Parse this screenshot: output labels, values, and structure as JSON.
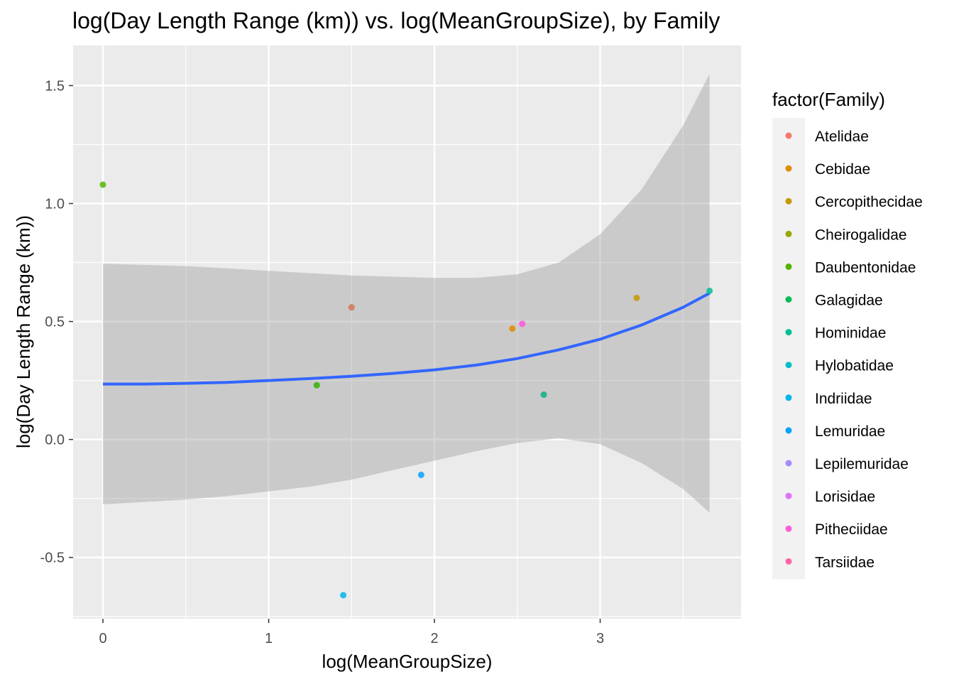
{
  "chart_data": {
    "type": "scatter",
    "title": "log(Day Length Range (km)) vs. log(MeanGroupSize), by Family",
    "xlabel": "log(MeanGroupSize)",
    "ylabel": "log(Day Length Range (km))",
    "xlim": [
      -0.18,
      3.85
    ],
    "ylim": [
      -0.76,
      1.67
    ],
    "x_ticks": [
      0,
      1,
      2,
      3
    ],
    "x_tick_labels": [
      "0",
      "1",
      "2",
      "3"
    ],
    "y_ticks": [
      -0.5,
      0.0,
      0.5,
      1.0,
      1.5
    ],
    "y_tick_labels": [
      "-0.5",
      "0.0",
      "0.5",
      "1.0",
      "1.5"
    ],
    "grid": true,
    "legend_title": "factor(Family)",
    "legend_position": "right",
    "legend": [
      {
        "family": "Atelidae",
        "color": "#F8766D"
      },
      {
        "family": "Cebidae",
        "color": "#E38900"
      },
      {
        "family": "Cercopithecidae",
        "color": "#C49A00"
      },
      {
        "family": "Cheirogalidae",
        "color": "#99A800"
      },
      {
        "family": "Daubentonidae",
        "color": "#53B400"
      },
      {
        "family": "Galagidae",
        "color": "#00BC56"
      },
      {
        "family": "Hominidae",
        "color": "#00C094"
      },
      {
        "family": "Hylobatidae",
        "color": "#00BFC4"
      },
      {
        "family": "Indriidae",
        "color": "#00B6EB"
      },
      {
        "family": "Lemuridae",
        "color": "#06A4FF"
      },
      {
        "family": "Lepilemuridae",
        "color": "#A58AFF"
      },
      {
        "family": "Lorisidae",
        "color": "#DF70F8"
      },
      {
        "family": "Pitheciidae",
        "color": "#FB61D7"
      },
      {
        "family": "Tarsiidae",
        "color": "#FF66A8"
      }
    ],
    "points": [
      {
        "x": 0.0,
        "y": 1.08,
        "color": "#53B400"
      },
      {
        "x": 1.5,
        "y": 0.56,
        "color": "#00BC56"
      },
      {
        "x": 1.5,
        "y": 0.56,
        "color": "#F8766D"
      },
      {
        "x": 1.29,
        "y": 0.23,
        "color": "#00BFC4"
      },
      {
        "x": 1.29,
        "y": 0.23,
        "color": "#53B400"
      },
      {
        "x": 1.45,
        "y": -0.66,
        "color": "#00B6EB"
      },
      {
        "x": 1.92,
        "y": -0.15,
        "color": "#06A4FF"
      },
      {
        "x": 2.47,
        "y": 0.47,
        "color": "#E38900"
      },
      {
        "x": 2.53,
        "y": 0.49,
        "color": "#DF70F8"
      },
      {
        "x": 2.53,
        "y": 0.49,
        "color": "#FB61D7"
      },
      {
        "x": 2.66,
        "y": 0.19,
        "color": "#F8766D"
      },
      {
        "x": 2.66,
        "y": 0.19,
        "color": "#00C094"
      },
      {
        "x": 3.22,
        "y": 0.6,
        "color": "#C49A00"
      },
      {
        "x": 3.66,
        "y": 0.63,
        "color": "#00C094"
      }
    ],
    "smooth": {
      "color": "#3366FF",
      "x": [
        0.0,
        0.25,
        0.5,
        0.75,
        1.0,
        1.25,
        1.5,
        1.75,
        2.0,
        2.25,
        2.5,
        2.75,
        3.0,
        3.25,
        3.5,
        3.66
      ],
      "y": [
        0.235,
        0.235,
        0.238,
        0.242,
        0.25,
        0.258,
        0.268,
        0.28,
        0.295,
        0.315,
        0.343,
        0.38,
        0.425,
        0.485,
        0.56,
        0.62
      ],
      "upper": [
        0.745,
        0.74,
        0.735,
        0.725,
        0.715,
        0.705,
        0.695,
        0.69,
        0.685,
        0.685,
        0.7,
        0.75,
        0.87,
        1.06,
        1.33,
        1.55
      ],
      "lower": [
        -0.275,
        -0.265,
        -0.255,
        -0.24,
        -0.22,
        -0.2,
        -0.17,
        -0.13,
        -0.09,
        -0.05,
        -0.015,
        0.005,
        -0.02,
        -0.1,
        -0.21,
        -0.31
      ]
    }
  }
}
